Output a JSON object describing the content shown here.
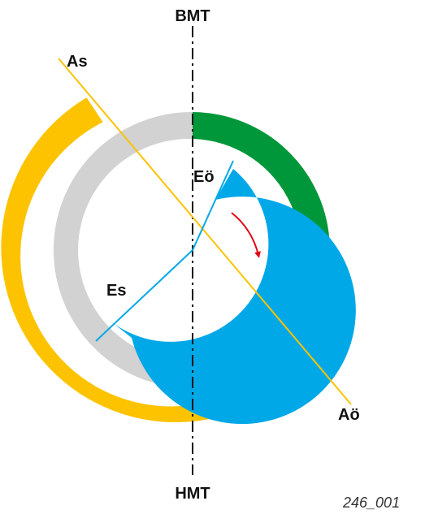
{
  "diagram": {
    "labels": {
      "top": "BMT",
      "bottom": "HMT",
      "intake_open": "Es",
      "intake_close": "Eö",
      "exhaust_open": "As",
      "exhaust_close": "Aö"
    },
    "figure_id": "246_001",
    "colors": {
      "exhaust_arc": "#FDC300",
      "gray_arc": "#D2D2D2",
      "green_arc": "#00973A",
      "intake_arc": "#00A8E8",
      "rotation_arrow": "#E30613",
      "line": "#111111"
    }
  }
}
